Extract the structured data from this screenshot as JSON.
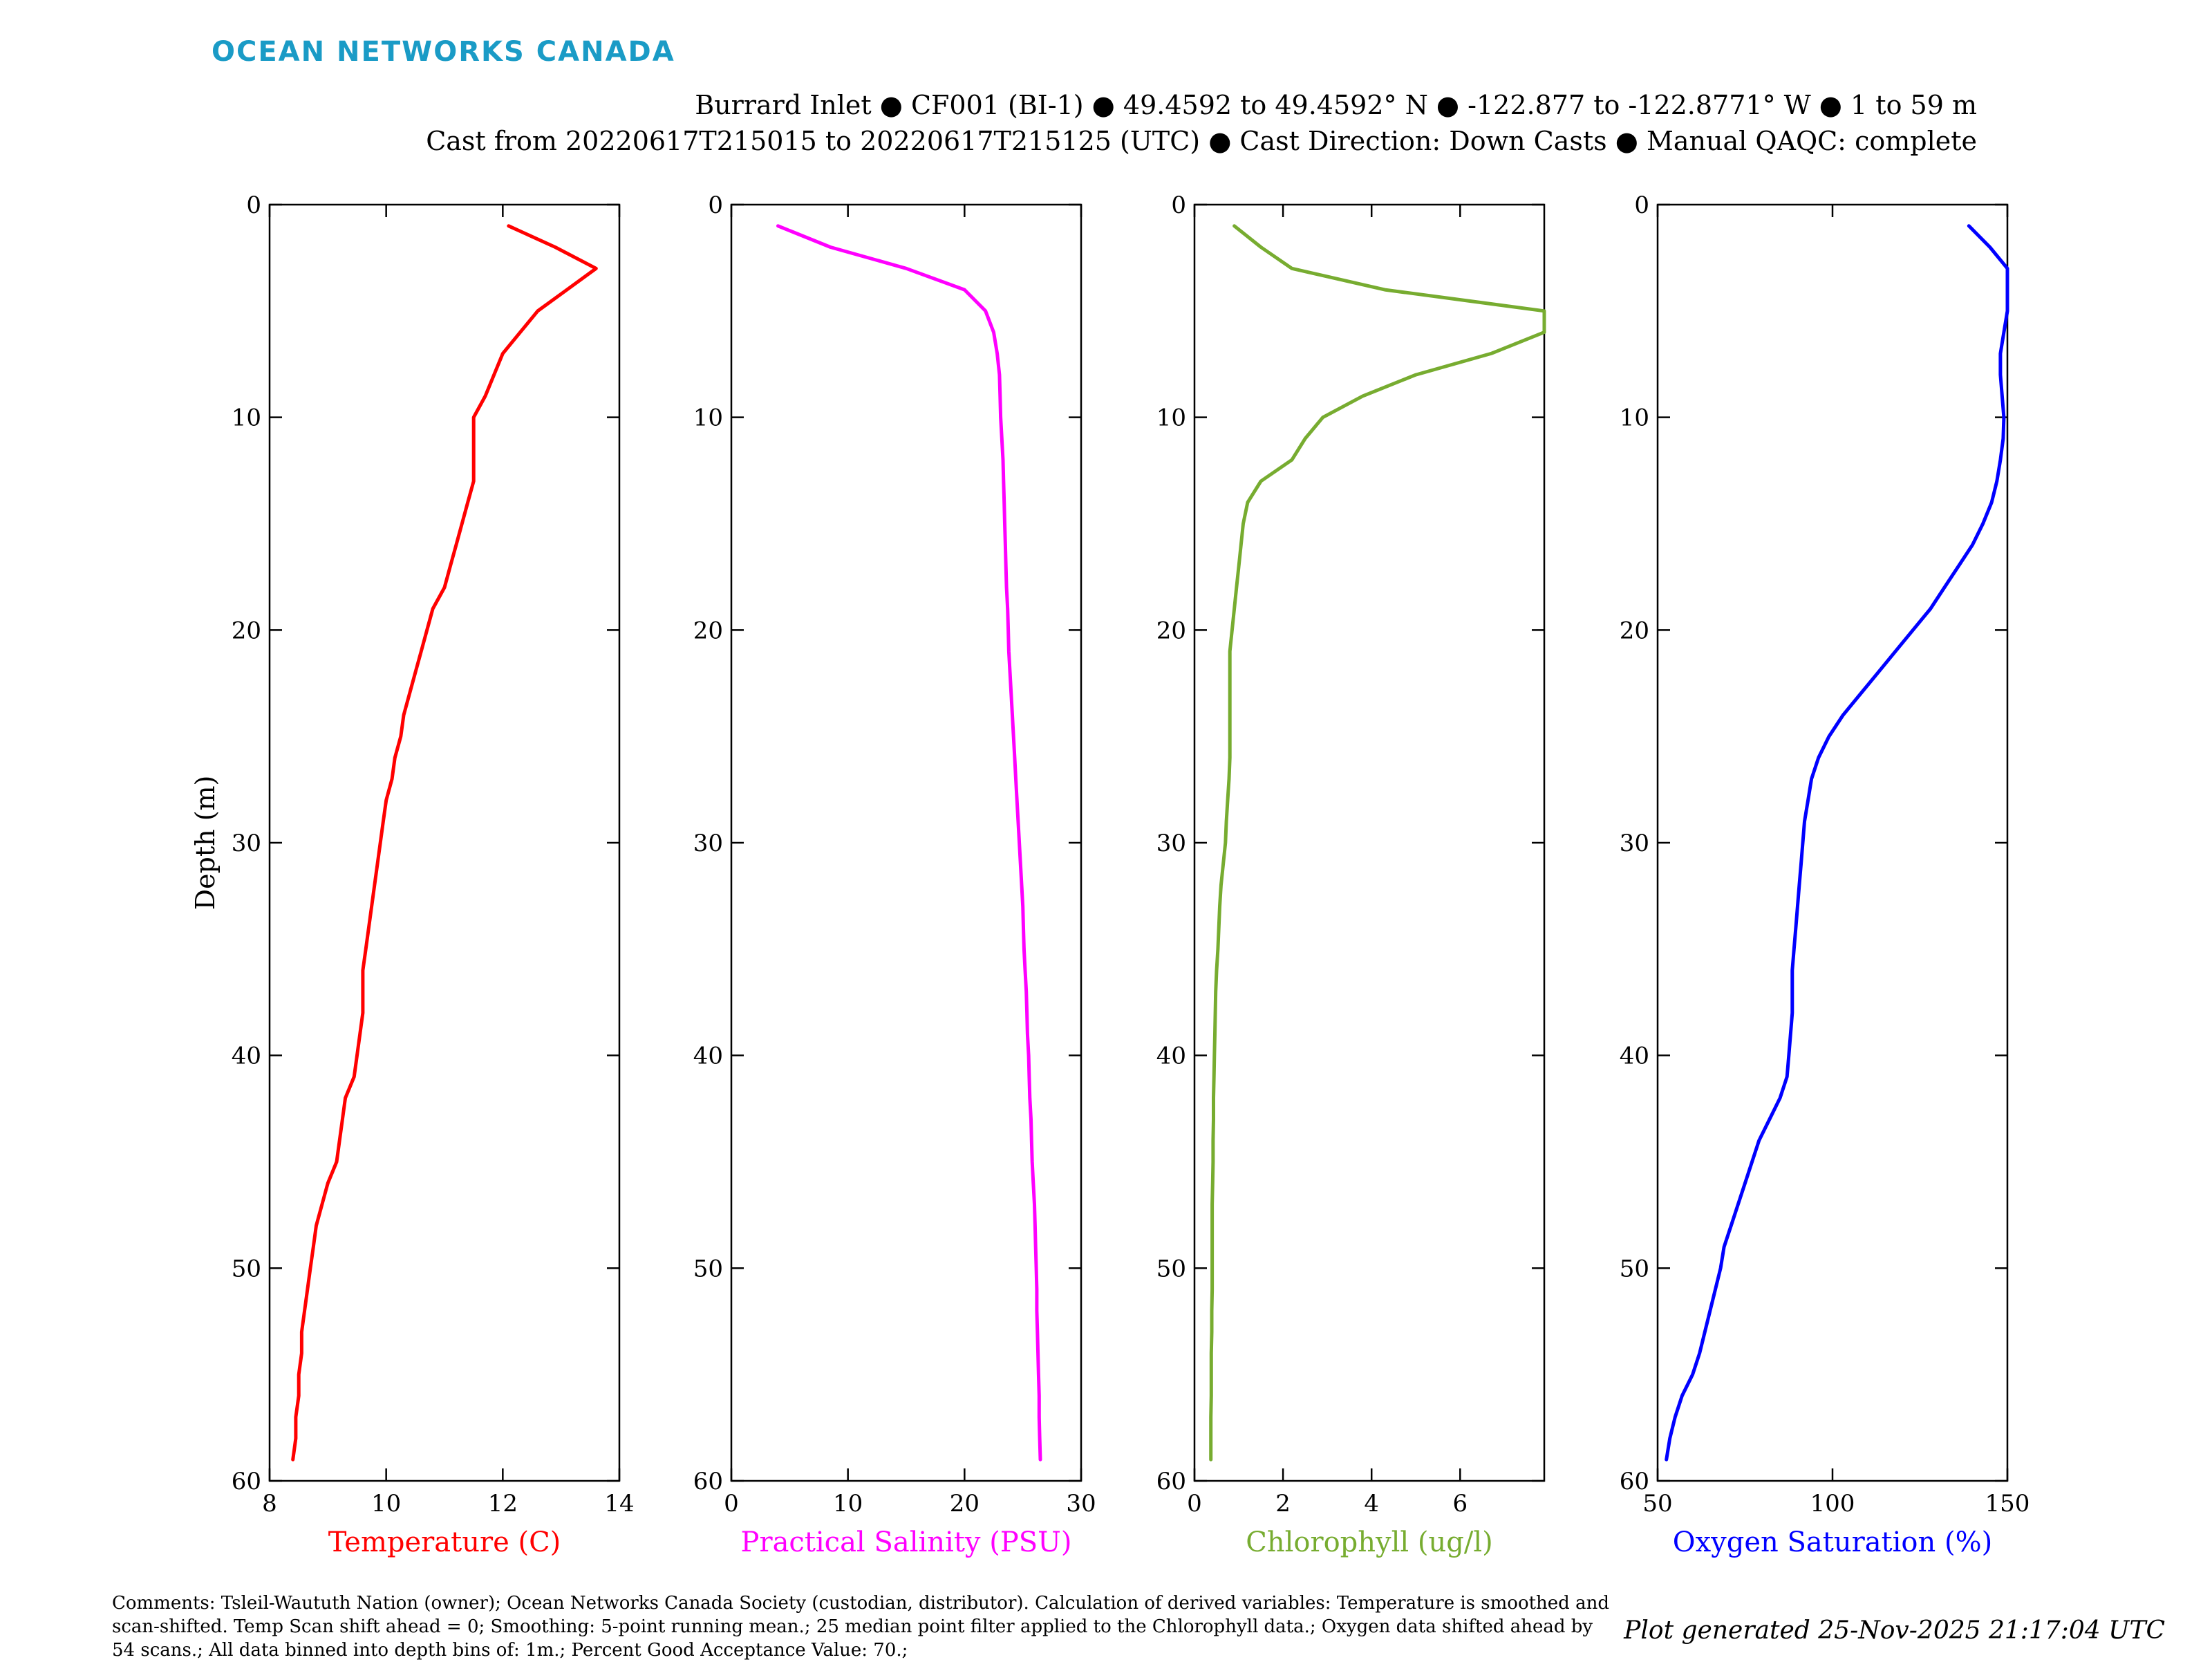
{
  "header": {
    "brand": "OCEAN NETWORKS CANADA",
    "title_line1": "Burrard Inlet ● CF001 (BI-1) ● 49.4592 to 49.4592° N ● -122.877 to -122.8771° W ● 1 to 59 m",
    "title_line2": "Cast from 20220617T215015 to 20220617T215125 (UTC) ● Cast Direction: Down Casts ● Manual QAQC: complete",
    "brand_color": "#1a9bc6"
  },
  "footer": {
    "comments": "Comments: Tsleil-Waututh Nation (owner); Ocean Networks Canada Society (custodian, distributor). Calculation of derived variables: Temperature is smoothed and scan-shifted. Temp Scan shift ahead = 0; Smoothing: 5-point running mean.; 25 median point filter applied to the Chlorophyll data.; Oxygen data shifted ahead by 54 scans.; All data binned into depth bins of: 1m.; Percent Good Acceptance Value: 70.;",
    "generated": "Plot generated 25-Nov-2025 21:17:04 UTC"
  },
  "chart_data": [
    {
      "type": "line",
      "xlabel": "Temperature (C)",
      "ylabel": "Depth (m)",
      "color": "#ff0000",
      "xlim": [
        8,
        14
      ],
      "ylim": [
        0,
        60
      ],
      "y_reversed": true,
      "xticks": [
        8,
        10,
        12,
        14
      ],
      "yticks": [
        0,
        10,
        20,
        30,
        40,
        50,
        60
      ],
      "x": [
        12.1,
        12.9,
        13.6,
        13.1,
        12.6,
        12.3,
        12.0,
        11.85,
        11.7,
        11.5,
        11.5,
        11.5,
        11.5,
        11.4,
        11.3,
        11.2,
        11.1,
        11.0,
        10.8,
        10.7,
        10.6,
        10.5,
        10.4,
        10.3,
        10.25,
        10.15,
        10.1,
        10.0,
        9.95,
        9.9,
        9.85,
        9.8,
        9.75,
        9.7,
        9.65,
        9.6,
        9.6,
        9.6,
        9.55,
        9.5,
        9.45,
        9.3,
        9.25,
        9.2,
        9.15,
        9.0,
        8.9,
        8.8,
        8.75,
        8.7,
        8.65,
        8.6,
        8.55,
        8.55,
        8.5,
        8.5,
        8.45,
        8.45,
        8.4
      ],
      "y": [
        1,
        2,
        3,
        4,
        5,
        6,
        7,
        8,
        9,
        10,
        11,
        12,
        13,
        14,
        15,
        16,
        17,
        18,
        19,
        20,
        21,
        22,
        23,
        24,
        25,
        26,
        27,
        28,
        29,
        30,
        31,
        32,
        33,
        34,
        35,
        36,
        37,
        38,
        39,
        40,
        41,
        42,
        43,
        44,
        45,
        46,
        47,
        48,
        49,
        50,
        51,
        52,
        53,
        54,
        55,
        56,
        57,
        58,
        59
      ]
    },
    {
      "type": "line",
      "xlabel": "Practical Salinity (PSU)",
      "ylabel": "",
      "color": "#ff00ff",
      "xlim": [
        0,
        30
      ],
      "ylim": [
        0,
        60
      ],
      "y_reversed": true,
      "xticks": [
        0,
        10,
        20,
        30
      ],
      "yticks": [
        0,
        10,
        20,
        30,
        40,
        50,
        60
      ],
      "x": [
        4.0,
        8.5,
        15.0,
        20.0,
        21.8,
        22.5,
        22.8,
        23.0,
        23.05,
        23.1,
        23.2,
        23.3,
        23.35,
        23.4,
        23.45,
        23.5,
        23.55,
        23.6,
        23.7,
        23.75,
        23.8,
        23.9,
        24.0,
        24.1,
        24.2,
        24.3,
        24.4,
        24.5,
        24.6,
        24.7,
        24.8,
        24.9,
        25.0,
        25.05,
        25.1,
        25.2,
        25.3,
        25.35,
        25.4,
        25.5,
        25.55,
        25.6,
        25.7,
        25.75,
        25.8,
        25.9,
        26.0,
        26.05,
        26.1,
        26.15,
        26.2,
        26.2,
        26.25,
        26.3,
        26.35,
        26.4,
        26.4,
        26.45,
        26.5
      ],
      "y": [
        1,
        2,
        3,
        4,
        5,
        6,
        7,
        8,
        9,
        10,
        11,
        12,
        13,
        14,
        15,
        16,
        17,
        18,
        19,
        20,
        21,
        22,
        23,
        24,
        25,
        26,
        27,
        28,
        29,
        30,
        31,
        32,
        33,
        34,
        35,
        36,
        37,
        38,
        39,
        40,
        41,
        42,
        43,
        44,
        45,
        46,
        47,
        48,
        49,
        50,
        51,
        52,
        53,
        54,
        55,
        56,
        57,
        58,
        59
      ]
    },
    {
      "type": "line",
      "xlabel": "Chlorophyll (ug/l)",
      "ylabel": "",
      "color": "#77ac30",
      "xlim": [
        0,
        7.9
      ],
      "ylim": [
        0,
        60
      ],
      "y_reversed": true,
      "xticks": [
        0,
        2,
        4,
        6
      ],
      "yticks": [
        0,
        10,
        20,
        30,
        40,
        50,
        60
      ],
      "x": [
        0.9,
        1.5,
        2.2,
        4.3,
        7.9,
        7.9,
        6.7,
        5.0,
        3.8,
        2.9,
        2.5,
        2.2,
        1.5,
        1.2,
        1.1,
        1.05,
        1.0,
        0.95,
        0.9,
        0.85,
        0.8,
        0.8,
        0.8,
        0.8,
        0.8,
        0.8,
        0.78,
        0.75,
        0.72,
        0.7,
        0.65,
        0.6,
        0.57,
        0.55,
        0.53,
        0.5,
        0.48,
        0.47,
        0.46,
        0.45,
        0.44,
        0.43,
        0.43,
        0.42,
        0.42,
        0.41,
        0.4,
        0.4,
        0.4,
        0.4,
        0.4,
        0.39,
        0.39,
        0.38,
        0.38,
        0.38,
        0.37,
        0.37,
        0.37
      ],
      "y": [
        1,
        2,
        3,
        4,
        5,
        6,
        7,
        8,
        9,
        10,
        11,
        12,
        13,
        14,
        15,
        16,
        17,
        18,
        19,
        20,
        21,
        22,
        23,
        24,
        25,
        26,
        27,
        28,
        29,
        30,
        31,
        32,
        33,
        34,
        35,
        36,
        37,
        38,
        39,
        40,
        41,
        42,
        43,
        44,
        45,
        46,
        47,
        48,
        49,
        50,
        51,
        52,
        53,
        54,
        55,
        56,
        57,
        58,
        59
      ]
    },
    {
      "type": "line",
      "xlabel": "Oxygen Saturation (%)",
      "ylabel": "",
      "color": "#0000ff",
      "xlim": [
        50,
        150
      ],
      "ylim": [
        0,
        60
      ],
      "y_reversed": true,
      "xticks": [
        50,
        100,
        150
      ],
      "yticks": [
        0,
        10,
        20,
        30,
        40,
        50,
        60
      ],
      "x": [
        139,
        145,
        150,
        150,
        150,
        149,
        148,
        148,
        148.5,
        149,
        148.8,
        148,
        147,
        145.5,
        143,
        140,
        136,
        132,
        128,
        123,
        118,
        113,
        108,
        103,
        99,
        96,
        94,
        93,
        92,
        91.5,
        91,
        90.5,
        90,
        89.5,
        89,
        88.5,
        88.5,
        88.5,
        88,
        87.5,
        87,
        85,
        82,
        79,
        77,
        75,
        73,
        71,
        69,
        68,
        66.5,
        65,
        63.5,
        62,
        60,
        57,
        55,
        53.5,
        52.5
      ],
      "y": [
        1,
        2,
        3,
        4,
        5,
        6,
        7,
        8,
        9,
        10,
        11,
        12,
        13,
        14,
        15,
        16,
        17,
        18,
        19,
        20,
        21,
        22,
        23,
        24,
        25,
        26,
        27,
        28,
        29,
        30,
        31,
        32,
        33,
        34,
        35,
        36,
        37,
        38,
        39,
        40,
        41,
        42,
        43,
        44,
        45,
        46,
        47,
        48,
        49,
        50,
        51,
        52,
        53,
        54,
        55,
        56,
        57,
        58,
        59
      ]
    }
  ]
}
